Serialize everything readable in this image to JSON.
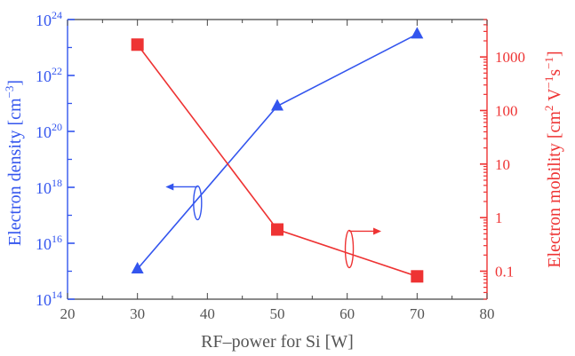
{
  "chart_data": {
    "type": "line",
    "x": [
      30,
      50,
      70
    ],
    "xlabel": "RF–power for Si [W]",
    "xlim": [
      20,
      80
    ],
    "xticks": [
      20,
      30,
      40,
      50,
      60,
      70,
      80
    ],
    "left_axis": {
      "label_main": "Electron density [cm",
      "label_sup": "−3",
      "label_end": "]",
      "scale": "log",
      "ylim_exp": [
        14,
        24
      ],
      "tick_exps": [
        14,
        16,
        18,
        20,
        22,
        24
      ],
      "color": "#3355ee"
    },
    "right_axis": {
      "label_main": "Electron mobility [cm",
      "label_sup1": "2",
      "label_mid": " V",
      "label_sup2": "−1",
      "label_mid2": "s",
      "label_sup3": "−1",
      "label_end": "]",
      "scale": "log",
      "ylim": [
        0.03,
        5000
      ],
      "tick_values": [
        0.1,
        1,
        10,
        100,
        1000
      ],
      "tick_labels": [
        "0.1",
        "1",
        "10",
        "100",
        "1000"
      ],
      "color": "#ee3333"
    },
    "series": [
      {
        "axis": "left",
        "marker": "triangle",
        "color": "#3355ee",
        "values": [
          1200000000000000.0,
          8e+20,
          3e+23
        ]
      },
      {
        "axis": "right",
        "marker": "square",
        "color": "#ee3333",
        "values": [
          1700,
          0.6,
          0.08
        ]
      }
    ],
    "annotations": [
      {
        "type": "arrow-left",
        "series_axis": "left",
        "color": "#3355ee"
      },
      {
        "type": "arrow-right",
        "series_axis": "right",
        "color": "#ee3333"
      }
    ],
    "grid": false
  }
}
